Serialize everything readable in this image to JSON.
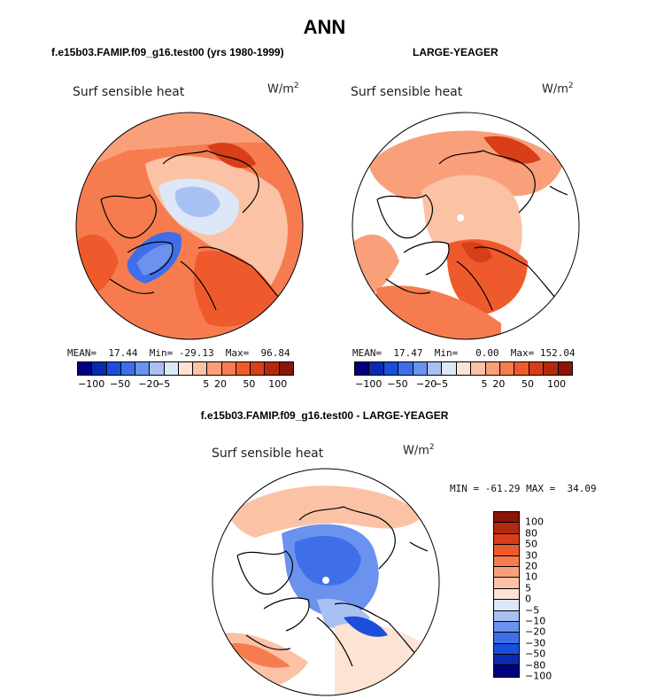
{
  "title": "ANN",
  "panels": [
    {
      "subtitle": "f.e15b03.FAMIP.f09_g16.test00 (yrs 1980-1999)",
      "variable": "Surf sensible heat",
      "units": "W/m",
      "units_exp": "2",
      "stats": "MEAN=  17.44  Min= -29.13  Max=  96.84",
      "colorbar_ticks": [
        "−100",
        "−50",
        "−20",
        "−5",
        "5",
        "20",
        "50",
        "100"
      ]
    },
    {
      "subtitle": "LARGE-YEAGER",
      "variable": "Surf sensible heat",
      "units": "W/m",
      "units_exp": "2",
      "stats": "MEAN=  17.47  Min=   0.00  Max= 152.04",
      "colorbar_ticks": [
        "−100",
        "−50",
        "−20",
        "−5",
        "5",
        "20",
        "50",
        "100"
      ]
    },
    {
      "subtitle": "f.e15b03.FAMIP.f09_g16.test00 - LARGE-YEAGER",
      "variable": "Surf sensible heat",
      "units": "W/m",
      "units_exp": "2",
      "stats": "MIN = -61.29 MAX =  34.09",
      "colorbar_ticks": [
        "100",
        "80",
        "50",
        "30",
        "20",
        "10",
        "5",
        "0",
        "−5",
        "−10",
        "−20",
        "−30",
        "−50",
        "−80",
        "−100"
      ]
    }
  ],
  "palette": {
    "abs_levels": [
      "#00007f",
      "#0a2ab0",
      "#1b4fdb",
      "#3f6fe8",
      "#6b92ee",
      "#a9c0f2",
      "#dce8f8",
      "#fce3d4",
      "#fbc2a6",
      "#f9a07b",
      "#f67c4f",
      "#ee5a2c",
      "#d83e17",
      "#b22a0e",
      "#8a1508"
    ],
    "diff_levels": [
      "#8a1508",
      "#b22a0e",
      "#d83e17",
      "#ee5a2c",
      "#f67c4f",
      "#f9a07b",
      "#fbc2a6",
      "#fce3d4",
      "#dce8f8",
      "#a9c0f2",
      "#6b92ee",
      "#3f6fe8",
      "#1b4fdb",
      "#0a2ab0",
      "#00007f"
    ]
  }
}
